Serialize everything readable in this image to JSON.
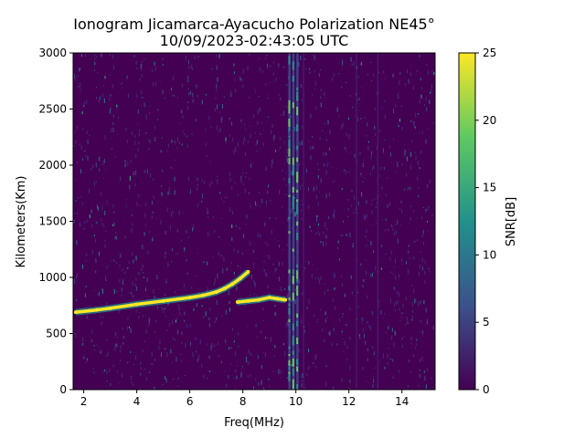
{
  "figure": {
    "title_line1": "Ionogram Jicamarca-Ayacucho Polarization NE45°",
    "title_line2": "10/09/2023-02:43:05 UTC"
  },
  "chart_data": {
    "type": "heatmap",
    "title": "Ionogram Jicamarca-Ayacucho Polarization NE45°",
    "subtitle": "10/09/2023-02:43:05 UTC",
    "xlabel": "Freq(MHz)",
    "ylabel": "Kilometers(Km)",
    "xlim": [
      1.6,
      15.25
    ],
    "ylim": [
      0,
      3000
    ],
    "xticks": [
      2,
      4,
      6,
      8,
      10,
      12,
      14
    ],
    "yticks": [
      0,
      500,
      1000,
      1500,
      2000,
      2500,
      3000
    ],
    "colorbar": {
      "label": "SNR[dB]",
      "range": [
        0,
        25
      ],
      "ticks": [
        0,
        5,
        10,
        15,
        20,
        25
      ],
      "colormap": "viridis"
    },
    "colors": {
      "low": "#440154",
      "mid_low": "#3b528b",
      "mid": "#21918c",
      "mid_high": "#5ec962",
      "high": "#fde725"
    },
    "features": {
      "o_trace": {
        "freq_mhz": [
          1.7,
          2.5,
          3.0,
          4.0,
          5.0,
          6.0,
          6.5,
          7.0,
          7.3,
          7.6,
          7.9,
          8.2
        ],
        "height_km": [
          690,
          710,
          725,
          760,
          790,
          820,
          840,
          870,
          900,
          940,
          990,
          1050
        ],
        "snr_db": 25
      },
      "x_trace": {
        "freq_mhz": [
          7.8,
          8.2,
          8.6,
          9.0,
          9.3,
          9.6
        ],
        "height_km": [
          780,
          790,
          800,
          820,
          810,
          800
        ],
        "snr_db": 25
      },
      "interference_bands_mhz": [
        9.75,
        9.9,
        10.05,
        10.3,
        12.3,
        13.1
      ]
    }
  }
}
